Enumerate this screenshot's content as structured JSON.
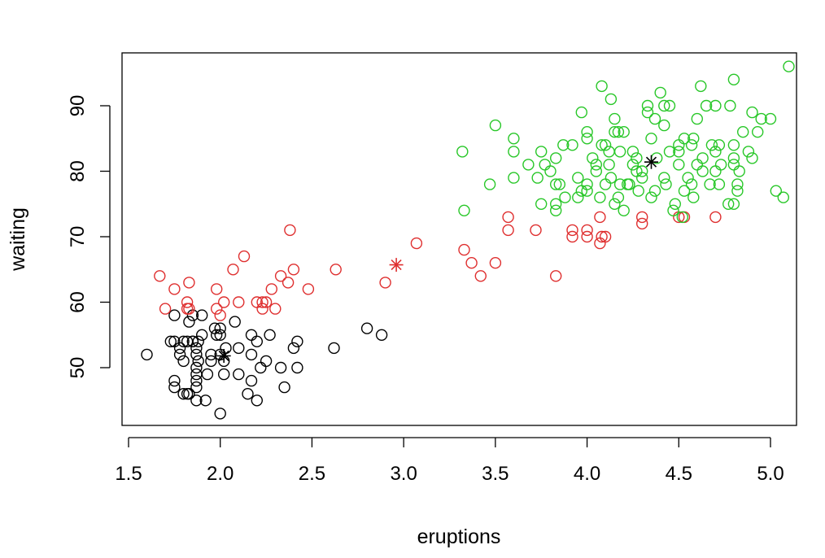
{
  "chart_data": {
    "type": "scatter",
    "title": "",
    "xlabel": "eruptions",
    "ylabel": "waiting",
    "xlim": [
      1.55,
      5.15
    ],
    "ylim": [
      41,
      98
    ],
    "grid": false,
    "legend": "none",
    "x_ticks": [
      1.5,
      2.0,
      2.5,
      3.0,
      3.5,
      4.0,
      4.5,
      5.0
    ],
    "x_tick_labels": [
      "1.5",
      "2.0",
      "2.5",
      "3.0",
      "3.5",
      "4.0",
      "4.5",
      "5.0"
    ],
    "y_ticks": [
      50,
      60,
      70,
      80,
      90
    ],
    "y_tick_labels": [
      "50",
      "60",
      "70",
      "80",
      "90"
    ],
    "series": [
      {
        "color": "#000000",
        "marker": "open-circle",
        "points": [
          [
            1.6,
            52
          ],
          [
            1.73,
            54
          ],
          [
            1.75,
            54
          ],
          [
            1.75,
            48
          ],
          [
            1.75,
            47
          ],
          [
            1.75,
            58
          ],
          [
            1.78,
            53
          ],
          [
            1.78,
            52
          ],
          [
            1.8,
            46
          ],
          [
            1.8,
            51
          ],
          [
            1.8,
            54
          ],
          [
            1.82,
            46
          ],
          [
            1.82,
            54
          ],
          [
            1.83,
            46
          ],
          [
            1.83,
            57
          ],
          [
            1.85,
            54
          ],
          [
            1.85,
            58
          ],
          [
            1.85,
            54
          ],
          [
            1.87,
            45
          ],
          [
            1.87,
            47
          ],
          [
            1.87,
            48
          ],
          [
            1.87,
            49
          ],
          [
            1.87,
            50
          ],
          [
            1.87,
            52
          ],
          [
            1.87,
            53
          ],
          [
            1.88,
            51
          ],
          [
            1.88,
            54
          ],
          [
            1.9,
            55
          ],
          [
            1.9,
            58
          ],
          [
            1.92,
            45
          ],
          [
            1.93,
            49
          ],
          [
            1.95,
            52
          ],
          [
            1.95,
            51
          ],
          [
            1.97,
            56
          ],
          [
            1.98,
            55
          ],
          [
            2.0,
            43
          ],
          [
            2.0,
            56
          ],
          [
            2.0,
            55
          ],
          [
            2.0,
            52
          ],
          [
            2.02,
            49
          ],
          [
            2.02,
            51
          ],
          [
            2.03,
            53
          ],
          [
            2.08,
            57
          ],
          [
            2.1,
            49
          ],
          [
            2.1,
            53
          ],
          [
            2.15,
            46
          ],
          [
            2.17,
            48
          ],
          [
            2.17,
            52
          ],
          [
            2.17,
            55
          ],
          [
            2.2,
            45
          ],
          [
            2.2,
            54
          ],
          [
            2.22,
            50
          ],
          [
            2.25,
            51
          ],
          [
            2.27,
            55
          ],
          [
            2.33,
            50
          ],
          [
            2.35,
            47
          ],
          [
            2.4,
            53
          ],
          [
            2.42,
            54
          ],
          [
            2.42,
            50
          ],
          [
            2.62,
            53
          ],
          [
            2.8,
            56
          ],
          [
            2.88,
            55
          ]
        ]
      },
      {
        "color": "#df2f2f",
        "marker": "open-circle",
        "points": [
          [
            1.67,
            64
          ],
          [
            1.7,
            59
          ],
          [
            1.75,
            62
          ],
          [
            1.82,
            60
          ],
          [
            1.82,
            59
          ],
          [
            1.83,
            63
          ],
          [
            1.83,
            59
          ],
          [
            1.98,
            59
          ],
          [
            1.98,
            62
          ],
          [
            2.0,
            58
          ],
          [
            2.02,
            60
          ],
          [
            2.07,
            65
          ],
          [
            2.1,
            60
          ],
          [
            2.13,
            67
          ],
          [
            2.2,
            60
          ],
          [
            2.23,
            60
          ],
          [
            2.23,
            59
          ],
          [
            2.25,
            60
          ],
          [
            2.28,
            62
          ],
          [
            2.3,
            59
          ],
          [
            2.33,
            64
          ],
          [
            2.37,
            63
          ],
          [
            2.38,
            71
          ],
          [
            2.4,
            65
          ],
          [
            2.48,
            62
          ],
          [
            2.63,
            65
          ],
          [
            2.9,
            63
          ],
          [
            3.07,
            69
          ],
          [
            3.33,
            68
          ],
          [
            3.37,
            66
          ],
          [
            3.42,
            64
          ],
          [
            3.5,
            66
          ],
          [
            3.57,
            73
          ],
          [
            3.57,
            71
          ],
          [
            3.72,
            71
          ],
          [
            3.83,
            64
          ],
          [
            3.92,
            70
          ],
          [
            3.92,
            71
          ],
          [
            4.0,
            70
          ],
          [
            4.0,
            71
          ],
          [
            4.07,
            69
          ],
          [
            4.07,
            73
          ],
          [
            4.08,
            70
          ],
          [
            4.1,
            70
          ],
          [
            4.3,
            72
          ],
          [
            4.3,
            73
          ],
          [
            4.5,
            73
          ],
          [
            4.53,
            73
          ],
          [
            4.7,
            73
          ]
        ]
      },
      {
        "color": "#28c728",
        "marker": "open-circle",
        "points": [
          [
            3.32,
            83
          ],
          [
            3.33,
            74
          ],
          [
            3.47,
            78
          ],
          [
            3.5,
            87
          ],
          [
            3.6,
            83
          ],
          [
            3.6,
            85
          ],
          [
            3.6,
            79
          ],
          [
            3.68,
            81
          ],
          [
            3.73,
            79
          ],
          [
            3.75,
            75
          ],
          [
            3.75,
            83
          ],
          [
            3.77,
            81
          ],
          [
            3.8,
            80
          ],
          [
            3.83,
            78
          ],
          [
            3.83,
            74
          ],
          [
            3.83,
            75
          ],
          [
            3.83,
            82
          ],
          [
            3.85,
            78
          ],
          [
            3.87,
            84
          ],
          [
            3.88,
            76
          ],
          [
            3.92,
            84
          ],
          [
            3.95,
            79
          ],
          [
            3.95,
            76
          ],
          [
            3.97,
            89
          ],
          [
            3.97,
            77
          ],
          [
            4.0,
            86
          ],
          [
            4.0,
            85
          ],
          [
            4.0,
            78
          ],
          [
            4.0,
            77
          ],
          [
            4.03,
            82
          ],
          [
            4.05,
            80
          ],
          [
            4.05,
            81
          ],
          [
            4.07,
            76
          ],
          [
            4.08,
            93
          ],
          [
            4.08,
            84
          ],
          [
            4.1,
            84
          ],
          [
            4.1,
            78
          ],
          [
            4.12,
            83
          ],
          [
            4.12,
            81
          ],
          [
            4.13,
            79
          ],
          [
            4.13,
            91
          ],
          [
            4.15,
            75
          ],
          [
            4.15,
            86
          ],
          [
            4.15,
            88
          ],
          [
            4.17,
            76
          ],
          [
            4.17,
            86
          ],
          [
            4.18,
            83
          ],
          [
            4.18,
            78
          ],
          [
            4.2,
            74
          ],
          [
            4.2,
            86
          ],
          [
            4.22,
            78
          ],
          [
            4.23,
            78
          ],
          [
            4.25,
            81
          ],
          [
            4.25,
            83
          ],
          [
            4.27,
            80
          ],
          [
            4.27,
            82
          ],
          [
            4.28,
            77
          ],
          [
            4.3,
            80
          ],
          [
            4.3,
            79
          ],
          [
            4.33,
            89
          ],
          [
            4.33,
            90
          ],
          [
            4.35,
            85
          ],
          [
            4.35,
            76
          ],
          [
            4.37,
            88
          ],
          [
            4.37,
            77
          ],
          [
            4.38,
            82
          ],
          [
            4.4,
            92
          ],
          [
            4.42,
            90
          ],
          [
            4.42,
            87
          ],
          [
            4.42,
            79
          ],
          [
            4.43,
            78
          ],
          [
            4.45,
            83
          ],
          [
            4.45,
            90
          ],
          [
            4.47,
            74
          ],
          [
            4.48,
            75
          ],
          [
            4.5,
            83
          ],
          [
            4.5,
            81
          ],
          [
            4.5,
            84
          ],
          [
            4.52,
            73
          ],
          [
            4.53,
            77
          ],
          [
            4.53,
            85
          ],
          [
            4.55,
            79
          ],
          [
            4.57,
            84
          ],
          [
            4.57,
            78
          ],
          [
            4.58,
            85
          ],
          [
            4.58,
            76
          ],
          [
            4.6,
            88
          ],
          [
            4.6,
            81
          ],
          [
            4.62,
            93
          ],
          [
            4.63,
            82
          ],
          [
            4.63,
            80
          ],
          [
            4.65,
            90
          ],
          [
            4.67,
            78
          ],
          [
            4.68,
            84
          ],
          [
            4.7,
            90
          ],
          [
            4.7,
            83
          ],
          [
            4.7,
            80
          ],
          [
            4.72,
            84
          ],
          [
            4.72,
            78
          ],
          [
            4.73,
            81
          ],
          [
            4.77,
            75
          ],
          [
            4.78,
            90
          ],
          [
            4.8,
            94
          ],
          [
            4.8,
            84
          ],
          [
            4.8,
            82
          ],
          [
            4.8,
            81
          ],
          [
            4.8,
            75
          ],
          [
            4.82,
            78
          ],
          [
            4.82,
            77
          ],
          [
            4.83,
            80
          ],
          [
            4.85,
            86
          ],
          [
            4.88,
            83
          ],
          [
            4.9,
            89
          ],
          [
            4.9,
            82
          ],
          [
            4.93,
            86
          ],
          [
            4.95,
            88
          ],
          [
            5.0,
            88
          ],
          [
            5.03,
            77
          ],
          [
            5.07,
            76
          ],
          [
            5.1,
            96
          ]
        ]
      }
    ],
    "centers": [
      {
        "color": "#000000",
        "x": 2.02,
        "y": 51.8
      },
      {
        "color": "#df2f2f",
        "x": 2.96,
        "y": 65.7
      },
      {
        "color": "#000000",
        "x": 4.35,
        "y": 81.4
      }
    ]
  }
}
